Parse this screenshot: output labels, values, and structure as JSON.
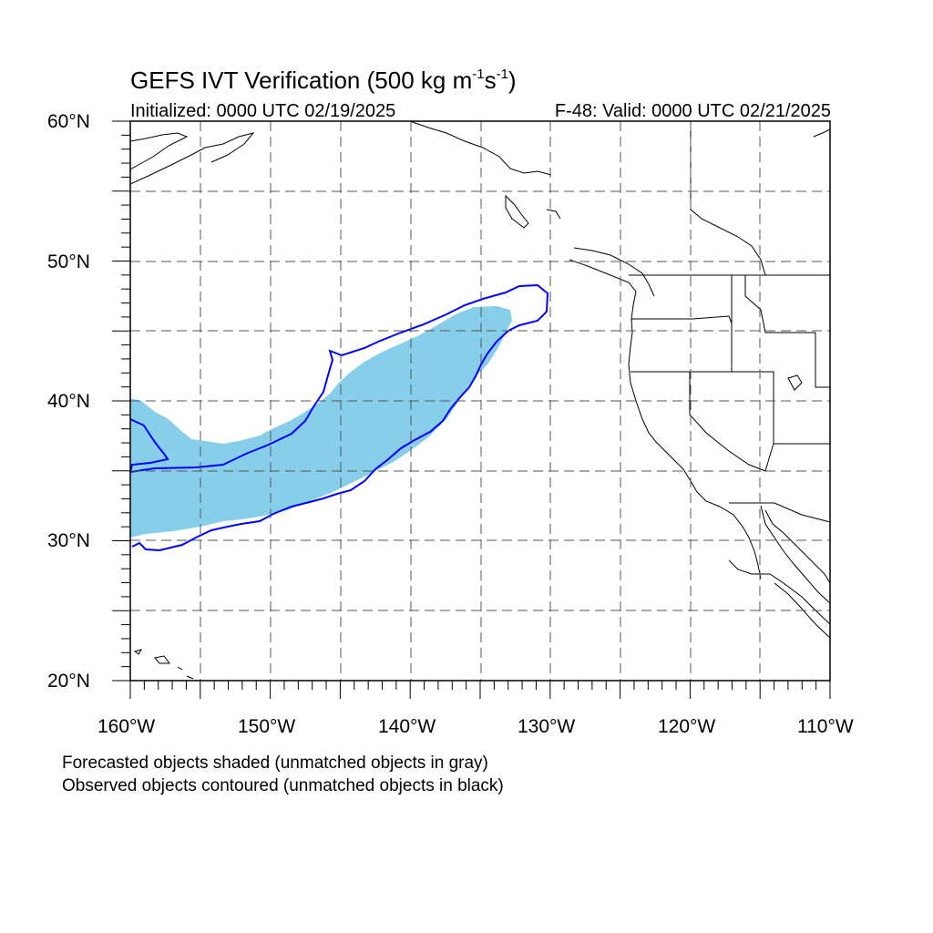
{
  "title": {
    "prefix": "GEFS IVT Verification (500 kg m",
    "sup1": "-1",
    "mid": "s",
    "sup2": "-1",
    "suffix": ")"
  },
  "initialized": "Initialized: 0000 UTC 02/19/2025",
  "valid": "F-48: Valid: 0000 UTC 02/21/2025",
  "lat_labels": [
    "60°N",
    "50°N",
    "40°N",
    "30°N",
    "20°N"
  ],
  "lon_labels": [
    "160°W",
    "150°W",
    "140°W",
    "130°W",
    "120°W",
    "110°W"
  ],
  "notes": [
    "Forecasted objects shaded (unmatched objects in gray)",
    "Observed objects contoured (unmatched objects in black)"
  ],
  "colors": {
    "forecast_fill": "#87ceeb",
    "observed_contour": "#0000ff",
    "coastline": "#000000",
    "grid": "#555555"
  },
  "map": {
    "lon_range": [
      -160,
      -110
    ],
    "lat_range": [
      20,
      60
    ],
    "lon_grid_step": 5,
    "lat_grid_step": 5,
    "grid_style": "dashed"
  }
}
